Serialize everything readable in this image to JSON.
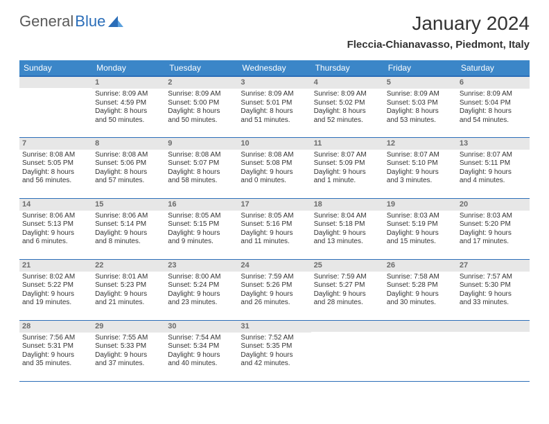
{
  "logo": {
    "text_gray": "General",
    "text_blue": "Blue",
    "shape_color": "#2a6db8"
  },
  "title": "January 2024",
  "location": "Fleccia-Chianavasso, Piedmont, Italy",
  "colors": {
    "header_bg": "#3b86c8",
    "header_border": "#2a6db8",
    "daynum_bg": "#e7e7e7",
    "daynum_text": "#6b6b6b",
    "row_sep": "#2a6db8",
    "body_text": "#333333"
  },
  "weekdays": [
    "Sunday",
    "Monday",
    "Tuesday",
    "Wednesday",
    "Thursday",
    "Friday",
    "Saturday"
  ],
  "weeks": [
    [
      null,
      {
        "d": "1",
        "sr": "Sunrise: 8:09 AM",
        "ss": "Sunset: 4:59 PM",
        "dl1": "Daylight: 8 hours",
        "dl2": "and 50 minutes."
      },
      {
        "d": "2",
        "sr": "Sunrise: 8:09 AM",
        "ss": "Sunset: 5:00 PM",
        "dl1": "Daylight: 8 hours",
        "dl2": "and 50 minutes."
      },
      {
        "d": "3",
        "sr": "Sunrise: 8:09 AM",
        "ss": "Sunset: 5:01 PM",
        "dl1": "Daylight: 8 hours",
        "dl2": "and 51 minutes."
      },
      {
        "d": "4",
        "sr": "Sunrise: 8:09 AM",
        "ss": "Sunset: 5:02 PM",
        "dl1": "Daylight: 8 hours",
        "dl2": "and 52 minutes."
      },
      {
        "d": "5",
        "sr": "Sunrise: 8:09 AM",
        "ss": "Sunset: 5:03 PM",
        "dl1": "Daylight: 8 hours",
        "dl2": "and 53 minutes."
      },
      {
        "d": "6",
        "sr": "Sunrise: 8:09 AM",
        "ss": "Sunset: 5:04 PM",
        "dl1": "Daylight: 8 hours",
        "dl2": "and 54 minutes."
      }
    ],
    [
      {
        "d": "7",
        "sr": "Sunrise: 8:08 AM",
        "ss": "Sunset: 5:05 PM",
        "dl1": "Daylight: 8 hours",
        "dl2": "and 56 minutes."
      },
      {
        "d": "8",
        "sr": "Sunrise: 8:08 AM",
        "ss": "Sunset: 5:06 PM",
        "dl1": "Daylight: 8 hours",
        "dl2": "and 57 minutes."
      },
      {
        "d": "9",
        "sr": "Sunrise: 8:08 AM",
        "ss": "Sunset: 5:07 PM",
        "dl1": "Daylight: 8 hours",
        "dl2": "and 58 minutes."
      },
      {
        "d": "10",
        "sr": "Sunrise: 8:08 AM",
        "ss": "Sunset: 5:08 PM",
        "dl1": "Daylight: 9 hours",
        "dl2": "and 0 minutes."
      },
      {
        "d": "11",
        "sr": "Sunrise: 8:07 AM",
        "ss": "Sunset: 5:09 PM",
        "dl1": "Daylight: 9 hours",
        "dl2": "and 1 minute."
      },
      {
        "d": "12",
        "sr": "Sunrise: 8:07 AM",
        "ss": "Sunset: 5:10 PM",
        "dl1": "Daylight: 9 hours",
        "dl2": "and 3 minutes."
      },
      {
        "d": "13",
        "sr": "Sunrise: 8:07 AM",
        "ss": "Sunset: 5:11 PM",
        "dl1": "Daylight: 9 hours",
        "dl2": "and 4 minutes."
      }
    ],
    [
      {
        "d": "14",
        "sr": "Sunrise: 8:06 AM",
        "ss": "Sunset: 5:13 PM",
        "dl1": "Daylight: 9 hours",
        "dl2": "and 6 minutes."
      },
      {
        "d": "15",
        "sr": "Sunrise: 8:06 AM",
        "ss": "Sunset: 5:14 PM",
        "dl1": "Daylight: 9 hours",
        "dl2": "and 8 minutes."
      },
      {
        "d": "16",
        "sr": "Sunrise: 8:05 AM",
        "ss": "Sunset: 5:15 PM",
        "dl1": "Daylight: 9 hours",
        "dl2": "and 9 minutes."
      },
      {
        "d": "17",
        "sr": "Sunrise: 8:05 AM",
        "ss": "Sunset: 5:16 PM",
        "dl1": "Daylight: 9 hours",
        "dl2": "and 11 minutes."
      },
      {
        "d": "18",
        "sr": "Sunrise: 8:04 AM",
        "ss": "Sunset: 5:18 PM",
        "dl1": "Daylight: 9 hours",
        "dl2": "and 13 minutes."
      },
      {
        "d": "19",
        "sr": "Sunrise: 8:03 AM",
        "ss": "Sunset: 5:19 PM",
        "dl1": "Daylight: 9 hours",
        "dl2": "and 15 minutes."
      },
      {
        "d": "20",
        "sr": "Sunrise: 8:03 AM",
        "ss": "Sunset: 5:20 PM",
        "dl1": "Daylight: 9 hours",
        "dl2": "and 17 minutes."
      }
    ],
    [
      {
        "d": "21",
        "sr": "Sunrise: 8:02 AM",
        "ss": "Sunset: 5:22 PM",
        "dl1": "Daylight: 9 hours",
        "dl2": "and 19 minutes."
      },
      {
        "d": "22",
        "sr": "Sunrise: 8:01 AM",
        "ss": "Sunset: 5:23 PM",
        "dl1": "Daylight: 9 hours",
        "dl2": "and 21 minutes."
      },
      {
        "d": "23",
        "sr": "Sunrise: 8:00 AM",
        "ss": "Sunset: 5:24 PM",
        "dl1": "Daylight: 9 hours",
        "dl2": "and 23 minutes."
      },
      {
        "d": "24",
        "sr": "Sunrise: 7:59 AM",
        "ss": "Sunset: 5:26 PM",
        "dl1": "Daylight: 9 hours",
        "dl2": "and 26 minutes."
      },
      {
        "d": "25",
        "sr": "Sunrise: 7:59 AM",
        "ss": "Sunset: 5:27 PM",
        "dl1": "Daylight: 9 hours",
        "dl2": "and 28 minutes."
      },
      {
        "d": "26",
        "sr": "Sunrise: 7:58 AM",
        "ss": "Sunset: 5:28 PM",
        "dl1": "Daylight: 9 hours",
        "dl2": "and 30 minutes."
      },
      {
        "d": "27",
        "sr": "Sunrise: 7:57 AM",
        "ss": "Sunset: 5:30 PM",
        "dl1": "Daylight: 9 hours",
        "dl2": "and 33 minutes."
      }
    ],
    [
      {
        "d": "28",
        "sr": "Sunrise: 7:56 AM",
        "ss": "Sunset: 5:31 PM",
        "dl1": "Daylight: 9 hours",
        "dl2": "and 35 minutes."
      },
      {
        "d": "29",
        "sr": "Sunrise: 7:55 AM",
        "ss": "Sunset: 5:33 PM",
        "dl1": "Daylight: 9 hours",
        "dl2": "and 37 minutes."
      },
      {
        "d": "30",
        "sr": "Sunrise: 7:54 AM",
        "ss": "Sunset: 5:34 PM",
        "dl1": "Daylight: 9 hours",
        "dl2": "and 40 minutes."
      },
      {
        "d": "31",
        "sr": "Sunrise: 7:52 AM",
        "ss": "Sunset: 5:35 PM",
        "dl1": "Daylight: 9 hours",
        "dl2": "and 42 minutes."
      },
      null,
      null,
      null
    ]
  ]
}
